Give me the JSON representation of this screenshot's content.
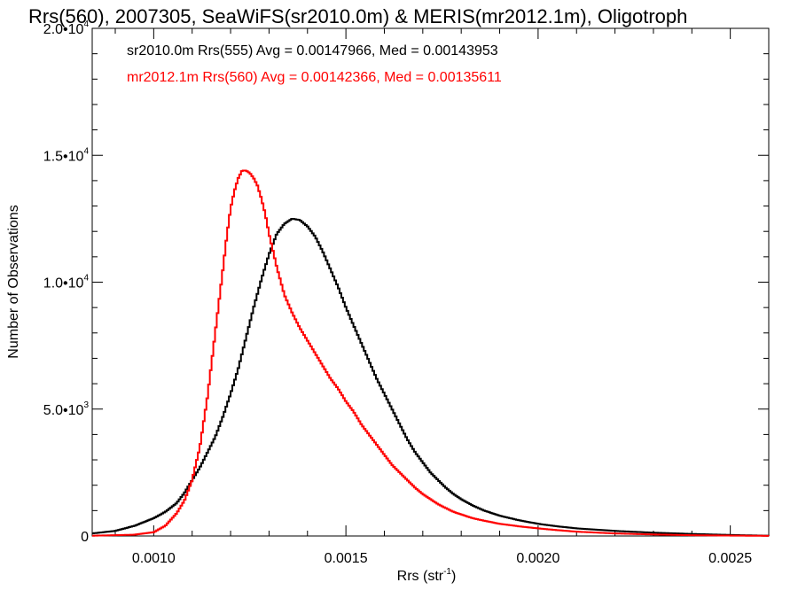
{
  "chart_data": {
    "type": "line",
    "title": "Rrs(560), 2007305, SeaWiFS(sr2010.0m) & MERIS(mr2012.1m), Oligotroph",
    "xlabel": "Rrs (str",
    "xlabel_sup": "-1",
    "xlabel_end": ")",
    "ylabel": "Number of Observations",
    "xlim": [
      0.00084,
      0.0026
    ],
    "ylim": [
      0,
      20000
    ],
    "x_ticks": [
      {
        "value": 0.001,
        "label": "0.0010"
      },
      {
        "value": 0.0015,
        "label": "0.0015"
      },
      {
        "value": 0.002,
        "label": "0.0020"
      },
      {
        "value": 0.0025,
        "label": "0.0025"
      }
    ],
    "y_ticks": [
      {
        "value": 0,
        "label": "0"
      },
      {
        "value": 5000,
        "label": "5.0•10",
        "sup": "3"
      },
      {
        "value": 10000,
        "label": "1.0•10",
        "sup": "4"
      },
      {
        "value": 15000,
        "label": "1.5•10",
        "sup": "4"
      },
      {
        "value": 20000,
        "label": "2.0•10",
        "sup": "4"
      }
    ],
    "legend_placement": "top-left",
    "series": [
      {
        "name": "sr2010.0m Rrs(555) Avg = 0.00147966, Med = 0.00143953",
        "color": "#000000",
        "x": [
          0.00084,
          0.0009,
          0.00095,
          0.001,
          0.00103,
          0.00106,
          0.00108,
          0.0011,
          0.00112,
          0.00114,
          0.00116,
          0.00118,
          0.0012,
          0.00122,
          0.00124,
          0.00126,
          0.00128,
          0.0013,
          0.00132,
          0.00134,
          0.00136,
          0.00138,
          0.0014,
          0.00142,
          0.00144,
          0.00146,
          0.00148,
          0.0015,
          0.00152,
          0.00154,
          0.00156,
          0.00158,
          0.0016,
          0.00162,
          0.00164,
          0.00166,
          0.00168,
          0.0017,
          0.00172,
          0.00174,
          0.00176,
          0.00178,
          0.0018,
          0.00183,
          0.00186,
          0.0019,
          0.00195,
          0.002,
          0.00205,
          0.0021,
          0.0022,
          0.0023,
          0.0024,
          0.0025,
          0.0026
        ],
        "y": [
          100,
          200,
          400,
          700,
          950,
          1300,
          1700,
          2200,
          2700,
          3300,
          3900,
          4700,
          5600,
          6600,
          7800,
          9000,
          10100,
          11100,
          11900,
          12300,
          12500,
          12450,
          12200,
          11800,
          11200,
          10500,
          9800,
          9000,
          8300,
          7600,
          6900,
          6200,
          5600,
          5000,
          4400,
          3800,
          3300,
          2900,
          2500,
          2200,
          1900,
          1650,
          1450,
          1200,
          1000,
          800,
          620,
          480,
          380,
          300,
          200,
          130,
          80,
          40,
          10
        ]
      },
      {
        "name": "mr2012.1m Rrs(560) Avg = 0.00142366, Med = 0.00135611",
        "color": "#ff0000",
        "x": [
          0.00084,
          0.00095,
          0.001,
          0.00103,
          0.00106,
          0.00108,
          0.0011,
          0.00112,
          0.00114,
          0.00116,
          0.00118,
          0.00119,
          0.0012,
          0.00121,
          0.00122,
          0.00123,
          0.00124,
          0.00125,
          0.00126,
          0.00127,
          0.00128,
          0.00129,
          0.0013,
          0.00132,
          0.00134,
          0.00136,
          0.00138,
          0.0014,
          0.00142,
          0.00144,
          0.00146,
          0.00148,
          0.0015,
          0.00152,
          0.00154,
          0.00156,
          0.00158,
          0.0016,
          0.00162,
          0.00164,
          0.00166,
          0.00168,
          0.0017,
          0.00172,
          0.00174,
          0.00176,
          0.00178,
          0.0018,
          0.00183,
          0.00186,
          0.0019,
          0.00195,
          0.002,
          0.00205,
          0.0021,
          0.0022,
          0.0023,
          0.0024,
          0.0025,
          0.0026
        ],
        "y": [
          10,
          50,
          150,
          400,
          900,
          1400,
          2200,
          3500,
          5500,
          8000,
          10500,
          11800,
          12900,
          13600,
          14100,
          14400,
          14400,
          14300,
          14100,
          13800,
          13300,
          12700,
          11900,
          10600,
          9500,
          8800,
          8200,
          7700,
          7200,
          6700,
          6200,
          5800,
          5300,
          4900,
          4400,
          4000,
          3600,
          3200,
          2800,
          2500,
          2200,
          1900,
          1650,
          1450,
          1250,
          1100,
          950,
          850,
          700,
          600,
          480,
          380,
          300,
          230,
          170,
          100,
          60,
          30,
          15,
          5
        ]
      }
    ]
  }
}
